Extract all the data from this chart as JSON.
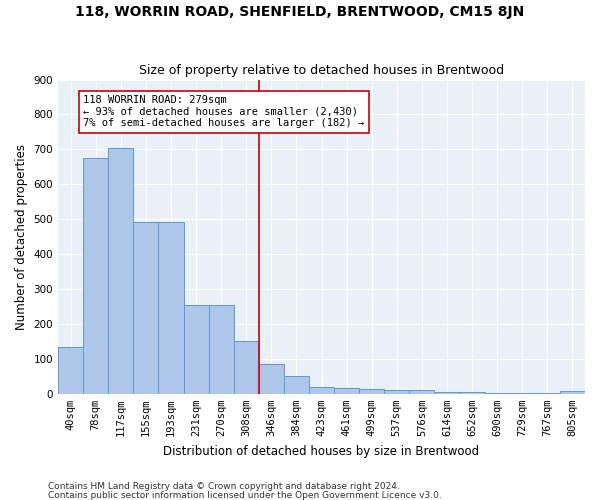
{
  "title": "118, WORRIN ROAD, SHENFIELD, BRENTWOOD, CM15 8JN",
  "subtitle": "Size of property relative to detached houses in Brentwood",
  "xlabel": "Distribution of detached houses by size in Brentwood",
  "ylabel": "Number of detached properties",
  "footer_line1": "Contains HM Land Registry data © Crown copyright and database right 2024.",
  "footer_line2": "Contains public sector information licensed under the Open Government Licence v3.0.",
  "bin_labels": [
    "40sqm",
    "78sqm",
    "117sqm",
    "155sqm",
    "193sqm",
    "231sqm",
    "270sqm",
    "308sqm",
    "346sqm",
    "384sqm",
    "423sqm",
    "461sqm",
    "499sqm",
    "537sqm",
    "576sqm",
    "614sqm",
    "652sqm",
    "690sqm",
    "729sqm",
    "767sqm",
    "805sqm"
  ],
  "bar_values": [
    135,
    675,
    705,
    492,
    492,
    253,
    253,
    150,
    85,
    50,
    20,
    18,
    14,
    10,
    10,
    5,
    4,
    2,
    2,
    2,
    8
  ],
  "bar_color": "#aec6e8",
  "bar_edge_color": "#5b9bd5",
  "vline_x": 7.5,
  "vline_color": "#cc0000",
  "annotation_text": "118 WORRIN ROAD: 279sqm\n← 93% of detached houses are smaller (2,430)\n7% of semi-detached houses are larger (182) →",
  "annotation_box_color": "#cc0000",
  "ylim": [
    0,
    900
  ],
  "yticks": [
    0,
    100,
    200,
    300,
    400,
    500,
    600,
    700,
    800,
    900
  ],
  "background_color": "#eaf0f8",
  "grid_color": "#ffffff",
  "title_fontsize": 10,
  "subtitle_fontsize": 9,
  "axis_label_fontsize": 8.5,
  "tick_fontsize": 7.5,
  "annotation_fontsize": 7.5,
  "figwidth": 6.0,
  "figheight": 5.0,
  "dpi": 100
}
